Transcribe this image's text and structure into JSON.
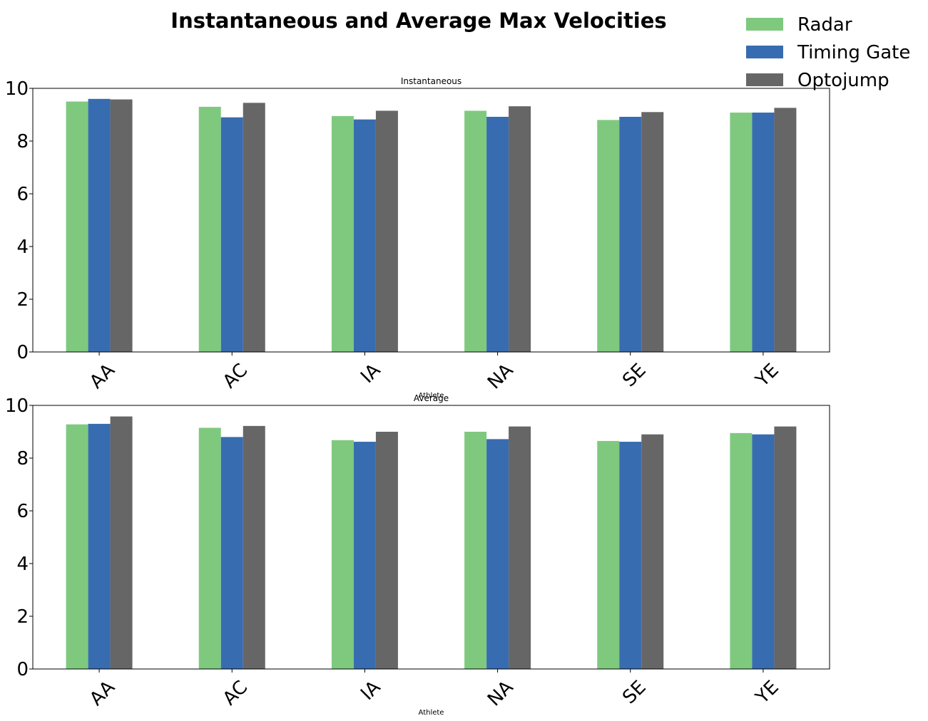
{
  "chart_title": "Instantaneous and Average Max Velocities",
  "legend": {
    "placement": "top-right",
    "entries": [
      {
        "label": "Radar",
        "color": "#7fc97f"
      },
      {
        "label": "Timing Gate",
        "color": "#386cb0"
      },
      {
        "label": "Optojump",
        "color": "#666666"
      }
    ]
  },
  "chart_data": [
    {
      "type": "bar",
      "title": "Instantaneous",
      "xlabel": "Athlete",
      "ylabel": "",
      "ylim": [
        0,
        10
      ],
      "yticks": [
        0,
        2,
        4,
        6,
        8,
        10
      ],
      "grid": false,
      "categories": [
        "AA",
        "AC",
        "IA",
        "NA",
        "SE",
        "YE"
      ],
      "series": [
        {
          "name": "Radar",
          "color": "#7fc97f",
          "values": [
            9.5,
            9.3,
            8.95,
            9.15,
            8.8,
            9.08
          ]
        },
        {
          "name": "Timing Gate",
          "color": "#386cb0",
          "values": [
            9.6,
            8.9,
            8.82,
            8.92,
            8.92,
            9.08
          ]
        },
        {
          "name": "Optojump",
          "color": "#666666",
          "values": [
            9.58,
            9.45,
            9.15,
            9.32,
            9.1,
            9.26
          ]
        }
      ]
    },
    {
      "type": "bar",
      "title": "Average",
      "xlabel": "Athlete",
      "ylabel": "",
      "ylim": [
        0,
        10
      ],
      "yticks": [
        0,
        2,
        4,
        6,
        8,
        10
      ],
      "grid": false,
      "categories": [
        "AA",
        "AC",
        "IA",
        "NA",
        "SE",
        "YE"
      ],
      "series": [
        {
          "name": "Radar",
          "color": "#7fc97f",
          "values": [
            9.28,
            9.15,
            8.68,
            9.0,
            8.65,
            8.95
          ]
        },
        {
          "name": "Timing Gate",
          "color": "#386cb0",
          "values": [
            9.3,
            8.8,
            8.62,
            8.72,
            8.62,
            8.9
          ]
        },
        {
          "name": "Optojump",
          "color": "#666666",
          "values": [
            9.58,
            9.22,
            9.0,
            9.2,
            8.9,
            9.2
          ]
        }
      ]
    }
  ]
}
